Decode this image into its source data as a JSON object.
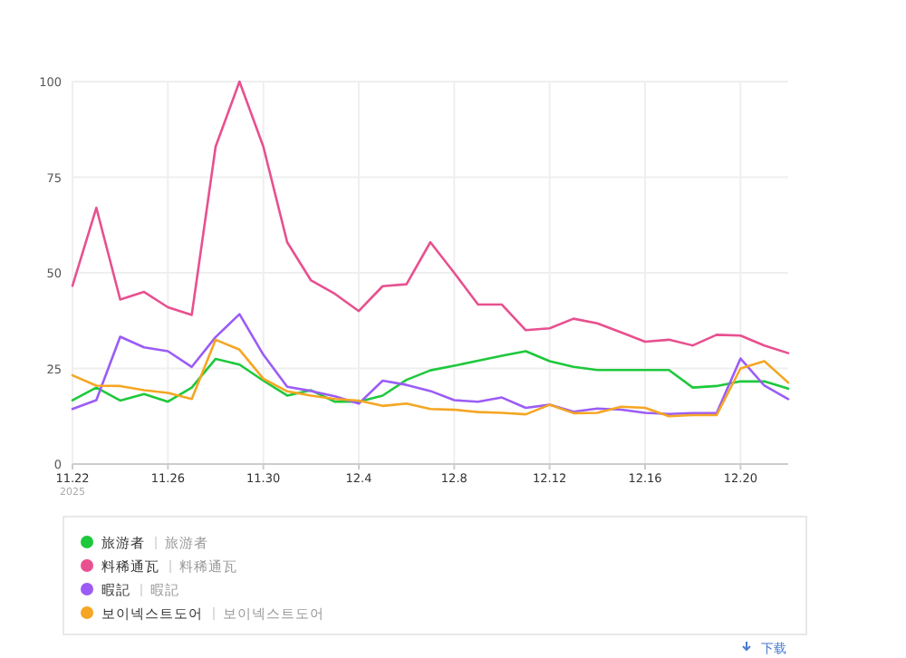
{
  "chart_data": {
    "type": "line",
    "x": [
      "2025-11-22",
      "2025-11-23",
      "2025-11-24",
      "2025-11-25",
      "2025-11-26",
      "2025-11-27",
      "2025-11-28",
      "2025-11-29",
      "2025-11-30",
      "2025-12-01",
      "2025-12-02",
      "2025-12-03",
      "2025-12-04",
      "2025-12-05",
      "2025-12-06",
      "2025-12-07",
      "2025-12-08",
      "2025-12-09",
      "2025-12-10",
      "2025-12-11",
      "2025-12-12",
      "2025-12-13",
      "2025-12-14",
      "2025-12-15",
      "2025-12-16",
      "2025-12-17",
      "2025-12-18",
      "2025-12-19",
      "2025-12-20",
      "2025-12-21",
      "2025-12-22"
    ],
    "series": [
      {
        "name": "旅游者",
        "color": "#1ec83c",
        "values": [
          16.7,
          20,
          16.6,
          18.3,
          16.3,
          20,
          27.5,
          26,
          21.8,
          17.9,
          19.3,
          16.3,
          16.3,
          17.9,
          22,
          24.5,
          25.7,
          27,
          28.3,
          29.5,
          26.9,
          25.4,
          24.6,
          24.6,
          24.6,
          24.6,
          20,
          20.4,
          21.6,
          21.6,
          19.7
        ]
      },
      {
        "name": "料稀通瓦",
        "color": "#e8508f",
        "values": [
          46.6,
          67,
          43,
          45,
          41,
          39,
          83,
          100,
          83,
          58,
          48,
          44.5,
          40,
          46.5,
          47,
          58,
          50,
          41.7,
          41.7,
          35,
          35.5,
          38,
          36.8,
          34.4,
          32,
          32.5,
          31,
          33.8,
          33.6,
          31,
          29
        ]
      },
      {
        "name": "暇記",
        "color": "#9b5cf6",
        "values": [
          14.4,
          16.7,
          33.3,
          30.5,
          29.5,
          25.4,
          33.2,
          39.2,
          28.6,
          20.2,
          19.1,
          17.7,
          15.8,
          21.8,
          20.7,
          19.1,
          16.7,
          16.3,
          17.4,
          14.7,
          15.5,
          13.7,
          14.5,
          14.2,
          13.4,
          13.1,
          13.3,
          13.3,
          27.6,
          20.5,
          17
        ]
      },
      {
        "name": "보이넥스트도어",
        "color": "#f5a623",
        "values": [
          23.2,
          20.5,
          20.4,
          19.3,
          18.6,
          17,
          32.5,
          29.9,
          22.3,
          19,
          17.9,
          17,
          16.6,
          15.2,
          15.8,
          14.4,
          14.2,
          13.6,
          13.4,
          13,
          15.5,
          13.3,
          13.4,
          15,
          14.7,
          12.5,
          12.8,
          12.8,
          25,
          26.9,
          21.3
        ]
      }
    ],
    "xlim": [
      "2025-11-22",
      "2025-12-22"
    ],
    "xticks": [
      {
        "value": "2025-11-22",
        "label": "11.22"
      },
      {
        "value": "2025-11-26",
        "label": "11.26"
      },
      {
        "value": "2025-11-30",
        "label": "11.30"
      },
      {
        "value": "2025-12-04",
        "label": "12.4"
      },
      {
        "value": "2025-12-08",
        "label": "12.8"
      },
      {
        "value": "2025-12-12",
        "label": "12.12"
      },
      {
        "value": "2025-12-16",
        "label": "12.16"
      },
      {
        "value": "2025-12-20",
        "label": "12.20"
      }
    ],
    "ylim": [
      0,
      100
    ],
    "yticks": [
      0,
      25,
      50,
      75,
      100
    ],
    "grid": true,
    "legend": "bottom",
    "marker": "none",
    "line_style": "solid",
    "annotations": [
      "2025",
      "下载"
    ]
  }
}
